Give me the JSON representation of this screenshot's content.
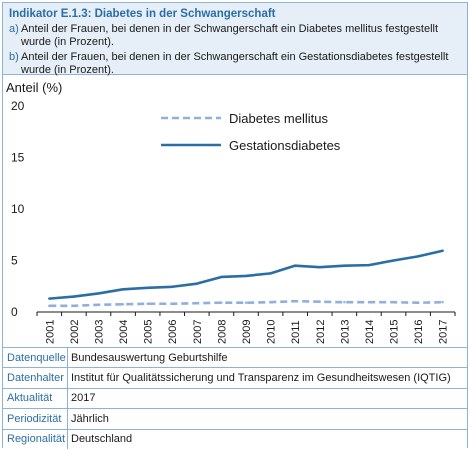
{
  "header": {
    "title": "Indikator E.1.3: Diabetes in der Schwangerschaft",
    "items": [
      {
        "letter": "a)",
        "text": "Anteil der Frauen, bei denen in der Schwangerschaft ein Diabetes mellitus festgestellt wurde (in Prozent)."
      },
      {
        "letter": "b)",
        "text": "Anteil der Frauen, bei denen in der Schwangerschaft ein Gestationsdiabetes festgestellt wurde (in Prozent)."
      }
    ]
  },
  "chart_data": {
    "type": "line",
    "ylabel": "Anteil (%)",
    "ylim": [
      0,
      20
    ],
    "yticks": [
      0,
      5,
      10,
      15,
      20
    ],
    "x": [
      "2001",
      "2002",
      "2003",
      "2004",
      "2005",
      "2006",
      "2007",
      "2008",
      "2009",
      "2010",
      "2011",
      "2012",
      "2013",
      "2014",
      "2015",
      "2016",
      "2017"
    ],
    "series": [
      {
        "name": "Diabetes mellitus",
        "style": "dashed",
        "color": "#8fb0dc",
        "values": [
          0.6,
          0.6,
          0.7,
          0.75,
          0.8,
          0.8,
          0.85,
          0.9,
          0.9,
          0.95,
          1.05,
          1.0,
          0.95,
          0.95,
          0.95,
          0.9,
          0.95
        ]
      },
      {
        "name": "Gestationsdiabetes",
        "style": "solid",
        "color": "#2a6ea6",
        "values": [
          1.3,
          1.5,
          1.8,
          2.2,
          2.35,
          2.45,
          2.75,
          3.4,
          3.5,
          3.75,
          4.5,
          4.35,
          4.5,
          4.55,
          5.0,
          5.4,
          5.95
        ]
      }
    ],
    "legend_position": "top-center",
    "grid": false
  },
  "meta": [
    {
      "label": "Datenquelle",
      "value": "Bundesauswertung Geburtshilfe"
    },
    {
      "label": "Datenhalter",
      "value": "Institut für Qualitätssicherung und Transparenz im Gesundheitswesen (IQTIG)"
    },
    {
      "label": "Aktualität",
      "value": "2017"
    },
    {
      "label": "Periodizität",
      "value": "Jährlich"
    },
    {
      "label": "Regionalität",
      "value": "Deutschland"
    }
  ],
  "colors": {
    "accent": "#2a6ea6",
    "header_bg": "#e6eef7",
    "border": "#8fb3d6"
  }
}
